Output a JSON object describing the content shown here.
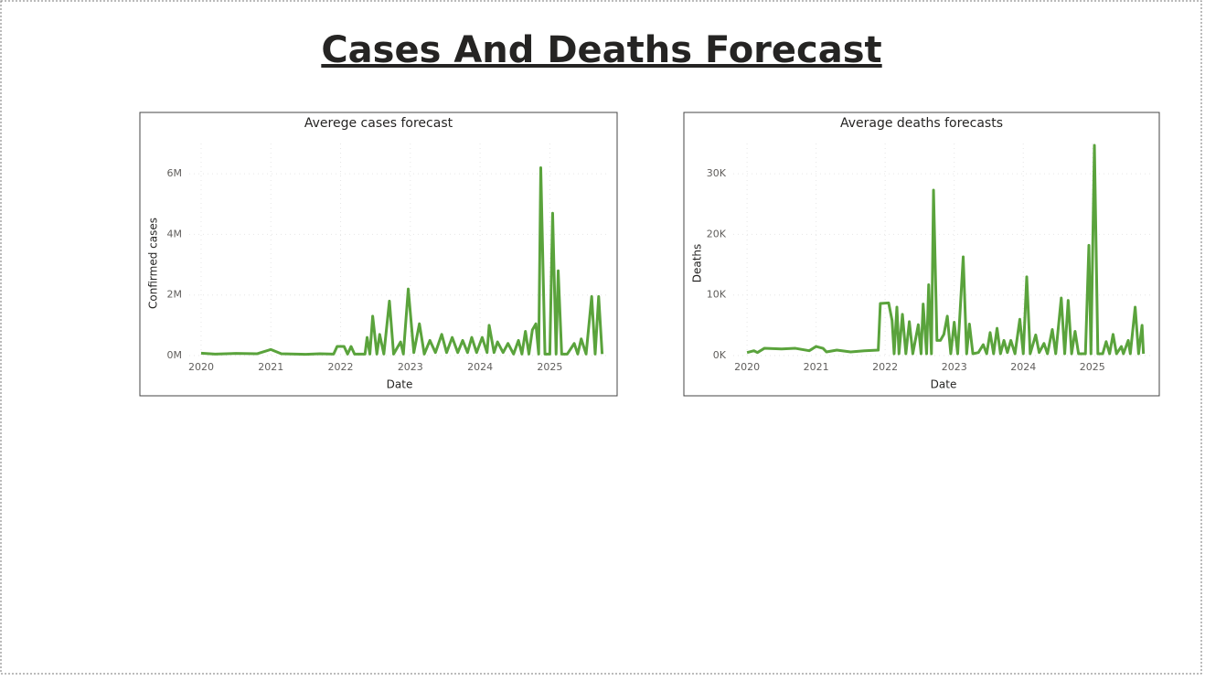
{
  "title": "Cases And Deaths Forecast",
  "chart_data": [
    {
      "type": "line",
      "title": "Averege cases forecast",
      "x_label": "Date",
      "y_label": "Confirmed cases",
      "color": "#5aa33c",
      "grid": true,
      "xlim": [
        2019.83,
        2025.86
      ],
      "xticks": [
        2020,
        2021,
        2022,
        2023,
        2024,
        2025
      ],
      "ylim": [
        0,
        7000000
      ],
      "yticks": [
        {
          "value": 0,
          "label": "0M"
        },
        {
          "value": 2000000,
          "label": "2M"
        },
        {
          "value": 4000000,
          "label": "4M"
        },
        {
          "value": 6000000,
          "label": "6M"
        }
      ],
      "x": [
        2020.0,
        2020.2,
        2020.5,
        2020.8,
        2021.0,
        2021.15,
        2021.5,
        2021.7,
        2021.9,
        2021.95,
        2022.05,
        2022.1,
        2022.15,
        2022.2,
        2022.35,
        2022.38,
        2022.42,
        2022.46,
        2022.52,
        2022.56,
        2022.62,
        2022.7,
        2022.76,
        2022.86,
        2022.9,
        2022.97,
        2023.05,
        2023.13,
        2023.2,
        2023.28,
        2023.36,
        2023.45,
        2023.52,
        2023.6,
        2023.68,
        2023.75,
        2023.82,
        2023.88,
        2023.95,
        2024.03,
        2024.1,
        2024.13,
        2024.2,
        2024.25,
        2024.33,
        2024.4,
        2024.48,
        2024.55,
        2024.6,
        2024.65,
        2024.7,
        2024.75,
        2024.8,
        2024.84,
        2024.87,
        2024.93,
        2025.0,
        2025.04,
        2025.09,
        2025.12,
        2025.17,
        2025.25,
        2025.35,
        2025.4,
        2025.45,
        2025.52,
        2025.6,
        2025.65,
        2025.7,
        2025.75
      ],
      "values": [
        80000,
        50000,
        70000,
        60000,
        200000,
        60000,
        40000,
        60000,
        50000,
        300000,
        300000,
        50000,
        300000,
        50000,
        50000,
        600000,
        50000,
        1300000,
        50000,
        700000,
        50000,
        1800000,
        50000,
        450000,
        50000,
        2200000,
        100000,
        1050000,
        50000,
        500000,
        100000,
        700000,
        100000,
        600000,
        100000,
        500000,
        100000,
        600000,
        100000,
        600000,
        100000,
        1000000,
        100000,
        450000,
        100000,
        400000,
        50000,
        500000,
        50000,
        800000,
        50000,
        850000,
        1050000,
        50000,
        6200000,
        50000,
        50000,
        4700000,
        50000,
        2800000,
        50000,
        50000,
        400000,
        50000,
        550000,
        50000,
        1950000,
        50000,
        1950000,
        50000
      ]
    },
    {
      "type": "line",
      "title": "Average deaths forecasts",
      "x_label": "Date",
      "y_label": "Deaths",
      "color": "#5aa33c",
      "grid": true,
      "xlim": [
        2019.8,
        2025.89
      ],
      "xticks": [
        2020,
        2021,
        2022,
        2023,
        2024,
        2025
      ],
      "ylim": [
        0,
        35000
      ],
      "yticks": [
        {
          "value": 0,
          "label": "0K"
        },
        {
          "value": 10000,
          "label": "10K"
        },
        {
          "value": 20000,
          "label": "20K"
        },
        {
          "value": 30000,
          "label": "30K"
        }
      ],
      "x": [
        2020.0,
        2020.1,
        2020.15,
        2020.25,
        2020.5,
        2020.7,
        2020.9,
        2021.0,
        2021.1,
        2021.15,
        2021.3,
        2021.5,
        2021.7,
        2021.9,
        2021.93,
        2022.05,
        2022.1,
        2022.13,
        2022.17,
        2022.2,
        2022.25,
        2022.3,
        2022.35,
        2022.4,
        2022.48,
        2022.52,
        2022.55,
        2022.6,
        2022.63,
        2022.67,
        2022.7,
        2022.75,
        2022.8,
        2022.85,
        2022.9,
        2022.95,
        2023.0,
        2023.05,
        2023.13,
        2023.18,
        2023.22,
        2023.27,
        2023.35,
        2023.42,
        2023.47,
        2023.52,
        2023.57,
        2023.62,
        2023.67,
        2023.72,
        2023.77,
        2023.82,
        2023.88,
        2023.95,
        2024.0,
        2024.05,
        2024.1,
        2024.18,
        2024.23,
        2024.3,
        2024.35,
        2024.42,
        2024.47,
        2024.55,
        2024.6,
        2024.65,
        2024.7,
        2024.75,
        2024.8,
        2024.9,
        2024.95,
        2024.98,
        2025.03,
        2025.08,
        2025.15,
        2025.2,
        2025.25,
        2025.3,
        2025.35,
        2025.42,
        2025.45,
        2025.52,
        2025.55,
        2025.62,
        2025.67,
        2025.72,
        2025.74
      ],
      "values": [
        500,
        800,
        500,
        1200,
        1100,
        1200,
        800,
        1500,
        1200,
        600,
        900,
        600,
        800,
        900,
        8600,
        8700,
        5800,
        300,
        8000,
        300,
        6800,
        300,
        5600,
        300,
        5100,
        300,
        8500,
        300,
        11700,
        300,
        27300,
        2500,
        2500,
        3500,
        6500,
        300,
        5500,
        300,
        16300,
        300,
        5200,
        300,
        500,
        1800,
        300,
        3800,
        300,
        4500,
        300,
        2500,
        500,
        2500,
        300,
        6000,
        300,
        13000,
        300,
        3400,
        500,
        2000,
        300,
        4300,
        300,
        9500,
        300,
        9100,
        300,
        4000,
        300,
        300,
        18200,
        300,
        34700,
        300,
        300,
        2300,
        300,
        3500,
        300,
        1500,
        300,
        2500,
        300,
        8000,
        300,
        5000,
        300
      ]
    }
  ]
}
